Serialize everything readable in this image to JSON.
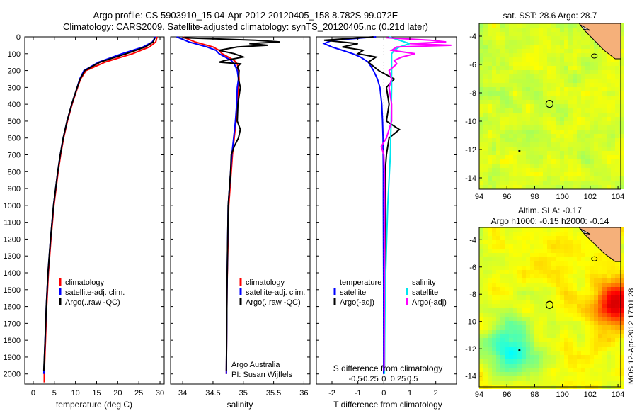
{
  "header": {
    "title_line1": "Argo profile: CS 5903910_15 04-Apr-2012 20120405_158 8.782S 99.072E",
    "title_line2": "Climatology: CARS2009. Satellite-adjusted climatology: synTS_20120405.nc (0.21d later)"
  },
  "colors": {
    "climatology": "#ff0000",
    "satellite": "#0000ff",
    "argo": "#000000",
    "sat_salinity": "#00e5ee",
    "argo_salinity_diff": "#ff00ff",
    "land": "#f5b07a"
  },
  "depth_axis": {
    "ylim": [
      0,
      2060
    ],
    "ticks": [
      "0",
      "100",
      "200",
      "300",
      "400",
      "500",
      "600",
      "700",
      "800",
      "900",
      "1000",
      "1100",
      "1200",
      "1300",
      "1400",
      "1500",
      "1600",
      "1700",
      "1800",
      "1900",
      "2000"
    ]
  },
  "chart_data": [
    {
      "type": "line",
      "name": "temperature_profile",
      "xlabel": "temperature (deg C)",
      "xlim": [
        -2,
        31
      ],
      "x_ticks": [
        "0",
        "5",
        "10",
        "15",
        "20",
        "25",
        "30"
      ],
      "legend": {
        "placement": "bottom-left",
        "items": [
          "climatology",
          "satellite-adj. clim.",
          "Argo(..raw -QC)"
        ]
      },
      "series": [
        {
          "name": "climatology",
          "color": "#ff0000",
          "depth": [
            0,
            30,
            60,
            100,
            150,
            200,
            250,
            300,
            400,
            500,
            600,
            700,
            800,
            900,
            1000,
            1200,
            1400,
            1600,
            1800,
            2000,
            2050
          ],
          "values": [
            29.3,
            29.0,
            27.5,
            23.5,
            17.0,
            12.5,
            11.2,
            10.5,
            9.2,
            8.1,
            7.2,
            6.5,
            5.9,
            5.4,
            4.9,
            4.2,
            3.6,
            3.2,
            2.9,
            2.6,
            2.6
          ]
        },
        {
          "name": "satellite-adj. clim.",
          "color": "#0000ff",
          "depth": [
            0,
            30,
            60,
            100,
            150,
            200,
            250,
            300,
            400,
            500,
            600,
            700,
            800,
            900,
            1000,
            1200,
            1400,
            1600,
            1800,
            2000
          ],
          "values": [
            28.9,
            28.2,
            26.0,
            21.0,
            15.5,
            12.0,
            11.0,
            10.4,
            9.1,
            8.0,
            7.1,
            6.4,
            5.8,
            5.3,
            4.8,
            4.1,
            3.5,
            3.1,
            2.8,
            2.5
          ]
        },
        {
          "name": "Argo(..raw -QC)",
          "color": "#000000",
          "depth": [
            5,
            30,
            60,
            100,
            150,
            200,
            250,
            300,
            400,
            500,
            600,
            700,
            800,
            900,
            1000,
            1200,
            1400,
            1600,
            1800,
            1980
          ],
          "values": [
            28.8,
            28.4,
            26.5,
            22.0,
            15.8,
            12.2,
            11.1,
            10.4,
            9.1,
            8.0,
            7.1,
            6.4,
            5.8,
            5.3,
            4.8,
            4.1,
            3.5,
            3.1,
            2.8,
            2.5
          ]
        }
      ]
    },
    {
      "type": "line",
      "name": "salinity_profile",
      "xlabel": "salinity",
      "xlim": [
        33.8,
        36.1
      ],
      "x_ticks": [
        "34",
        "34.5",
        "35",
        "35.5",
        "36"
      ],
      "legend": {
        "placement": "bottom-left",
        "items": [
          "climatology",
          "satellite-adj. clim.",
          "Argo(..raw -QC)"
        ]
      },
      "annotation": [
        "Argo Australia",
        "PI: Susan Wijffels"
      ],
      "series": [
        {
          "name": "climatology",
          "color": "#ff0000",
          "depth": [
            0,
            30,
            60,
            80,
            100,
            120,
            140,
            160,
            200,
            250,
            300,
            400,
            500,
            600,
            700,
            800,
            1000,
            1500,
            2000
          ],
          "values": [
            34.0,
            34.2,
            34.5,
            34.6,
            34.65,
            34.75,
            34.85,
            34.9,
            34.92,
            34.93,
            34.92,
            34.9,
            34.88,
            34.85,
            34.82,
            34.8,
            34.76,
            34.73,
            34.72
          ]
        },
        {
          "name": "satellite-adj. clim.",
          "color": "#0000ff",
          "depth": [
            0,
            30,
            60,
            80,
            100,
            120,
            140,
            160,
            200,
            250,
            300,
            400,
            500,
            600,
            700,
            800,
            1000,
            1500,
            2000
          ],
          "values": [
            33.9,
            34.1,
            34.4,
            34.55,
            34.6,
            34.7,
            34.8,
            34.85,
            34.9,
            34.92,
            34.9,
            34.89,
            34.87,
            34.84,
            34.81,
            34.79,
            34.75,
            34.73,
            34.72
          ]
        },
        {
          "name": "Argo(..raw -QC)",
          "color": "#000000",
          "depth": [
            5,
            20,
            30,
            40,
            50,
            60,
            80,
            100,
            120,
            140,
            150,
            160,
            180,
            200,
            250,
            300,
            400,
            500,
            550,
            600,
            650,
            700,
            800,
            1000,
            1500,
            1980
          ],
          "values": [
            34.0,
            35.2,
            35.6,
            35.1,
            35.4,
            34.9,
            34.6,
            34.85,
            35.0,
            34.7,
            34.6,
            34.95,
            34.9,
            34.93,
            34.92,
            34.95,
            34.91,
            34.9,
            34.95,
            34.92,
            34.85,
            34.8,
            34.79,
            34.75,
            34.73,
            34.72
          ]
        }
      ]
    },
    {
      "type": "line",
      "name": "difference_profile",
      "xlabel": "T difference from climatology",
      "xlabel_top": "S difference from climatology",
      "xlim": [
        -2.6,
        2.8
      ],
      "x_ticks": [
        "-2",
        "-1",
        "0",
        "1",
        "2"
      ],
      "s_ticks": [
        "-0.5",
        "-0.25",
        "0",
        "0.25",
        "0.5"
      ],
      "legend": {
        "placement": "bottom",
        "temperature_title": "temperature",
        "salinity_title": "salinity",
        "temperature_items": [
          "satellite",
          "Argo(-adj)"
        ],
        "salinity_items": [
          "satellite",
          "Argo(-adj)"
        ]
      },
      "series": [
        {
          "name": "temperature satellite",
          "color": "#0000ff",
          "depth": [
            0,
            20,
            40,
            60,
            80,
            100,
            120,
            150,
            200,
            250,
            300,
            400,
            500,
            600,
            800,
            1000,
            1500,
            2000
          ],
          "values": [
            -0.3,
            -2.0,
            -2.3,
            -2.0,
            -1.6,
            -1.2,
            -0.9,
            -0.6,
            -0.4,
            -0.25,
            -0.15,
            -0.08,
            -0.05,
            -0.03,
            -0.02,
            -0.02,
            -0.01,
            -0.01
          ]
        },
        {
          "name": "temperature Argo(-adj)",
          "color": "#000000",
          "depth": [
            0,
            20,
            40,
            60,
            80,
            100,
            120,
            150,
            200,
            250,
            300,
            400,
            500,
            550,
            600,
            650,
            700,
            800,
            1000,
            1500,
            1980
          ],
          "values": [
            -0.4,
            -2.3,
            -1.0,
            -1.6,
            -0.8,
            -1.0,
            -0.3,
            -0.6,
            -0.2,
            0.4,
            0.1,
            0.2,
            0.1,
            0.6,
            0.2,
            0.15,
            0.1,
            0.05,
            0.05,
            0.03,
            0.02
          ]
        },
        {
          "name": "salinity satellite",
          "color": "#00e5ee",
          "depth": [
            0,
            20,
            40,
            60,
            80,
            100,
            150,
            200,
            300,
            500,
            700,
            1000,
            1500,
            2000
          ],
          "values": [
            0.2,
            0.6,
            1.0,
            0.6,
            0.4,
            0.3,
            0.3,
            0.3,
            0.3,
            0.28,
            0.25,
            0.15,
            0.05,
            0.02
          ]
        },
        {
          "name": "salinity Argo(-adj)",
          "color": "#ff00ff",
          "depth": [
            5,
            20,
            30,
            40,
            50,
            60,
            80,
            100,
            120,
            140,
            160,
            200,
            250,
            300,
            400,
            500,
            600,
            650,
            700,
            800,
            1000,
            1500,
            1980
          ],
          "values": [
            0.1,
            1.8,
            2.4,
            1.0,
            2.6,
            0.5,
            0.3,
            1.2,
            0.7,
            0.4,
            0.5,
            0.2,
            0.3,
            0.2,
            0.3,
            0.3,
            0.1,
            -0.1,
            0.0,
            0.02,
            0.03,
            0.02,
            0.01
          ]
        }
      ]
    },
    {
      "type": "heatmap",
      "name": "sst_map",
      "title": "sat. SST: 28.6  Argo: 28.7",
      "xlim": [
        94,
        104.2
      ],
      "ylim": [
        -14.8,
        -3.1
      ],
      "x_ticks": [
        "94",
        "96",
        "98",
        "100",
        "102",
        "104"
      ],
      "y_ticks": [
        "-4",
        "-6",
        "-8",
        "-10",
        "-12",
        "-14"
      ],
      "argo_position": [
        99.07,
        -8.78
      ]
    },
    {
      "type": "heatmap",
      "name": "sla_map",
      "title_line1": "Altim. SLA: -0.17",
      "title_line2": "Argo h1000: -0.15  h2000: -0.14",
      "xlim": [
        94,
        104.2
      ],
      "ylim": [
        -14.8,
        -3.1
      ],
      "x_ticks": [
        "94",
        "96",
        "98",
        "100",
        "102",
        "104"
      ],
      "y_ticks": [
        "-4",
        "-6",
        "-8",
        "-10",
        "-12",
        "-14"
      ],
      "argo_position": [
        99.07,
        -8.78
      ]
    }
  ],
  "side_text": "IMOS 12-Apr-2012 17:01:28"
}
